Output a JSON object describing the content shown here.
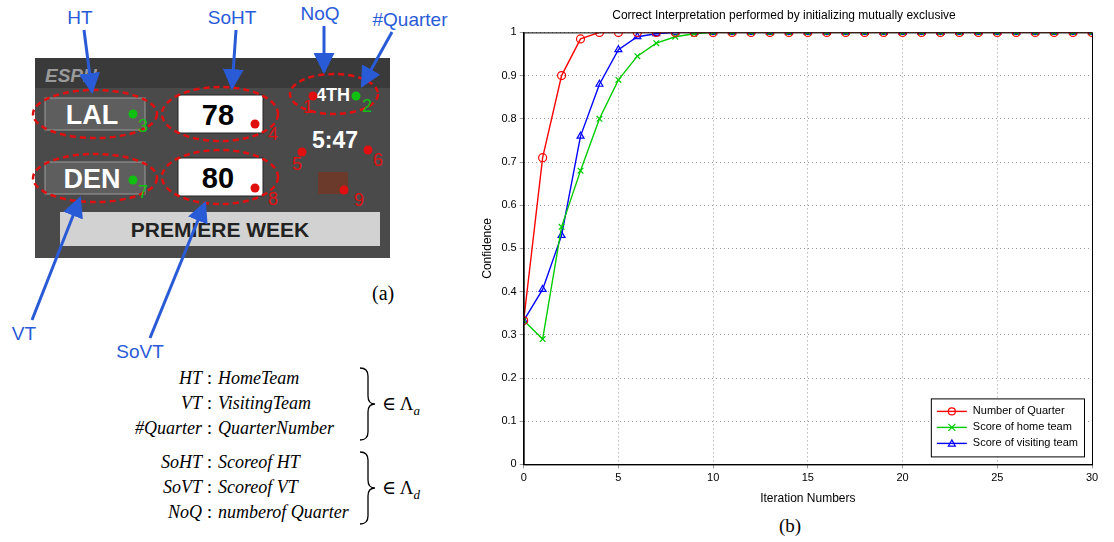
{
  "figure_a": {
    "label": "(a)",
    "scoreboard": {
      "logo": "ESPN",
      "home_team": "LAL",
      "home_score": "78",
      "visiting_team": "DEN",
      "visiting_score": "80",
      "quarter": "4TH",
      "clock": "5:47",
      "banner": "PREMIERE WEEK"
    },
    "annotations": [
      {
        "text": "HT"
      },
      {
        "text": "SoHT"
      },
      {
        "text": "NoQ"
      },
      {
        "text": "#Quarter"
      },
      {
        "text": "VT"
      },
      {
        "text": "SoVT"
      }
    ],
    "points": [
      {
        "label": "1",
        "color": "#e01010"
      },
      {
        "label": "2",
        "color": "#10c010"
      },
      {
        "label": "3",
        "color": "#10c010"
      },
      {
        "label": "4",
        "color": "#e01010"
      },
      {
        "label": "5",
        "color": "#e01010"
      },
      {
        "label": "6",
        "color": "#e01010"
      },
      {
        "label": "7",
        "color": "#10c010"
      },
      {
        "label": "8",
        "color": "#e01010"
      },
      {
        "label": "9",
        "color": "#e01010"
      }
    ],
    "definitions": [
      {
        "items": [
          {
            "abbr": "HT",
            "meaning": "HomeTeam"
          },
          {
            "abbr": "VT",
            "meaning": "VisitingTeam"
          },
          {
            "abbr": "#Quarter",
            "meaning": "QuarterNumber"
          }
        ],
        "separator": ":",
        "member_symbol": "∈",
        "set_symbol": "Λ",
        "subscript": "a"
      },
      {
        "items": [
          {
            "abbr": "SoHT",
            "meaning": "Scoreof HT"
          },
          {
            "abbr": "SoVT",
            "meaning": "Scoreof VT"
          },
          {
            "abbr": "NoQ",
            "meaning": "numberof Quarter"
          }
        ],
        "separator": ":",
        "member_symbol": "∈",
        "set_symbol": "Λ",
        "subscript": "d"
      }
    ]
  },
  "chart_data": {
    "type": "line",
    "panel_label": "(b)",
    "title": "Correct Interpretation performed by initializing mutually exclusive",
    "x_label": "Iteration Numbers",
    "y_label": "Confidence",
    "x": [
      0,
      1,
      2,
      3,
      4,
      5,
      6,
      7,
      8,
      9,
      10,
      11,
      12,
      13,
      14,
      15,
      16,
      17,
      18,
      19,
      20,
      21,
      22,
      23,
      24,
      25,
      26,
      27,
      28,
      29,
      30
    ],
    "series": [
      {
        "name": "Number of Quarter",
        "color": "#ff0000",
        "marker": "circle",
        "line_style": "solid",
        "values": [
          0.333,
          0.71,
          0.9,
          0.985,
          1,
          1,
          1,
          1,
          1,
          1,
          1,
          1,
          1,
          1,
          1,
          1,
          1,
          1,
          1,
          1,
          1,
          1,
          1,
          1,
          1,
          1,
          1,
          1,
          1,
          1,
          1
        ]
      },
      {
        "name": "Score of home team",
        "color": "#00cc00",
        "marker": "x",
        "line_style": "solid",
        "values": [
          0.333,
          0.29,
          0.55,
          0.68,
          0.8,
          0.89,
          0.945,
          0.975,
          0.99,
          0.997,
          1,
          1,
          1,
          1,
          1,
          1,
          1,
          1,
          1,
          1,
          1,
          1,
          1,
          1,
          1,
          1,
          1,
          1,
          1,
          1,
          1
        ]
      },
      {
        "name": "Score of visiting team",
        "color": "#0000ff",
        "marker": "triangle",
        "line_style": "solid",
        "values": [
          0.333,
          0.405,
          0.53,
          0.76,
          0.88,
          0.96,
          0.99,
          0.997,
          1,
          1,
          1,
          1,
          1,
          1,
          1,
          1,
          1,
          1,
          1,
          1,
          1,
          1,
          1,
          1,
          1,
          1,
          1,
          1,
          1,
          1,
          1
        ]
      }
    ],
    "xlim": [
      0,
      30
    ],
    "xticks": [
      0,
      5,
      10,
      15,
      20,
      25,
      30
    ],
    "ylim": [
      0,
      1
    ],
    "yticks": [
      0,
      0.1,
      0.2,
      0.3,
      0.4,
      0.5,
      0.6,
      0.7,
      0.8,
      0.9,
      1
    ],
    "grid": true,
    "legend": "lower right"
  }
}
